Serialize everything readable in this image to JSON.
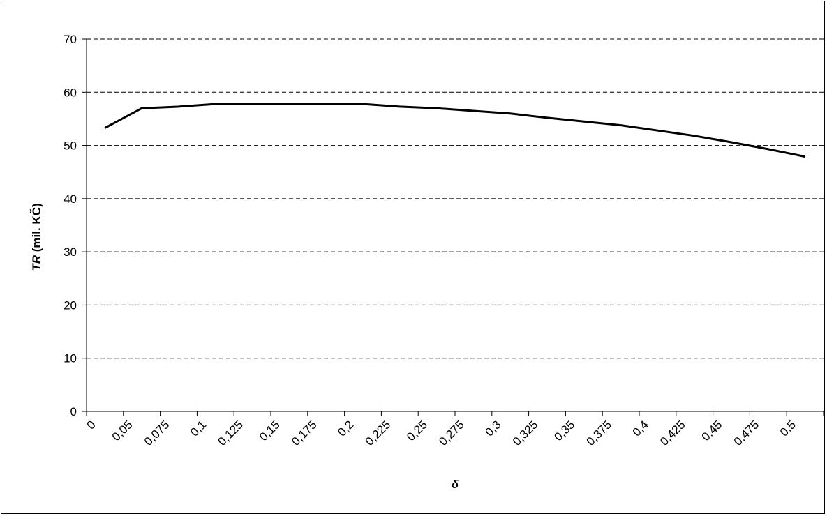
{
  "chart_data": {
    "type": "line",
    "title": "",
    "xlabel": "δ",
    "ylabel_italic": "TR",
    "ylabel_rest": " (mil. KČ)",
    "categories": [
      "0",
      "0,05",
      "0,075",
      "0,1",
      "0,125",
      "0,15",
      "0,175",
      "0,2",
      "0,225",
      "0,25",
      "0,275",
      "0,3",
      "0,325",
      "0,35",
      "0,375",
      "0,4",
      "0,425",
      "0,45",
      "0,475",
      "0,5"
    ],
    "values": [
      53.3,
      57.0,
      57.3,
      57.8,
      57.8,
      57.8,
      57.8,
      57.8,
      57.3,
      57.0,
      56.5,
      56.0,
      55.2,
      54.5,
      53.8,
      52.8,
      51.8,
      50.6,
      49.3,
      47.9
    ],
    "ylim": [
      0,
      70
    ],
    "yticks": [
      0,
      10,
      20,
      30,
      40,
      50,
      60,
      70
    ],
    "grid": "horizontal dashed",
    "legend": "none",
    "line_color": "#000000"
  }
}
